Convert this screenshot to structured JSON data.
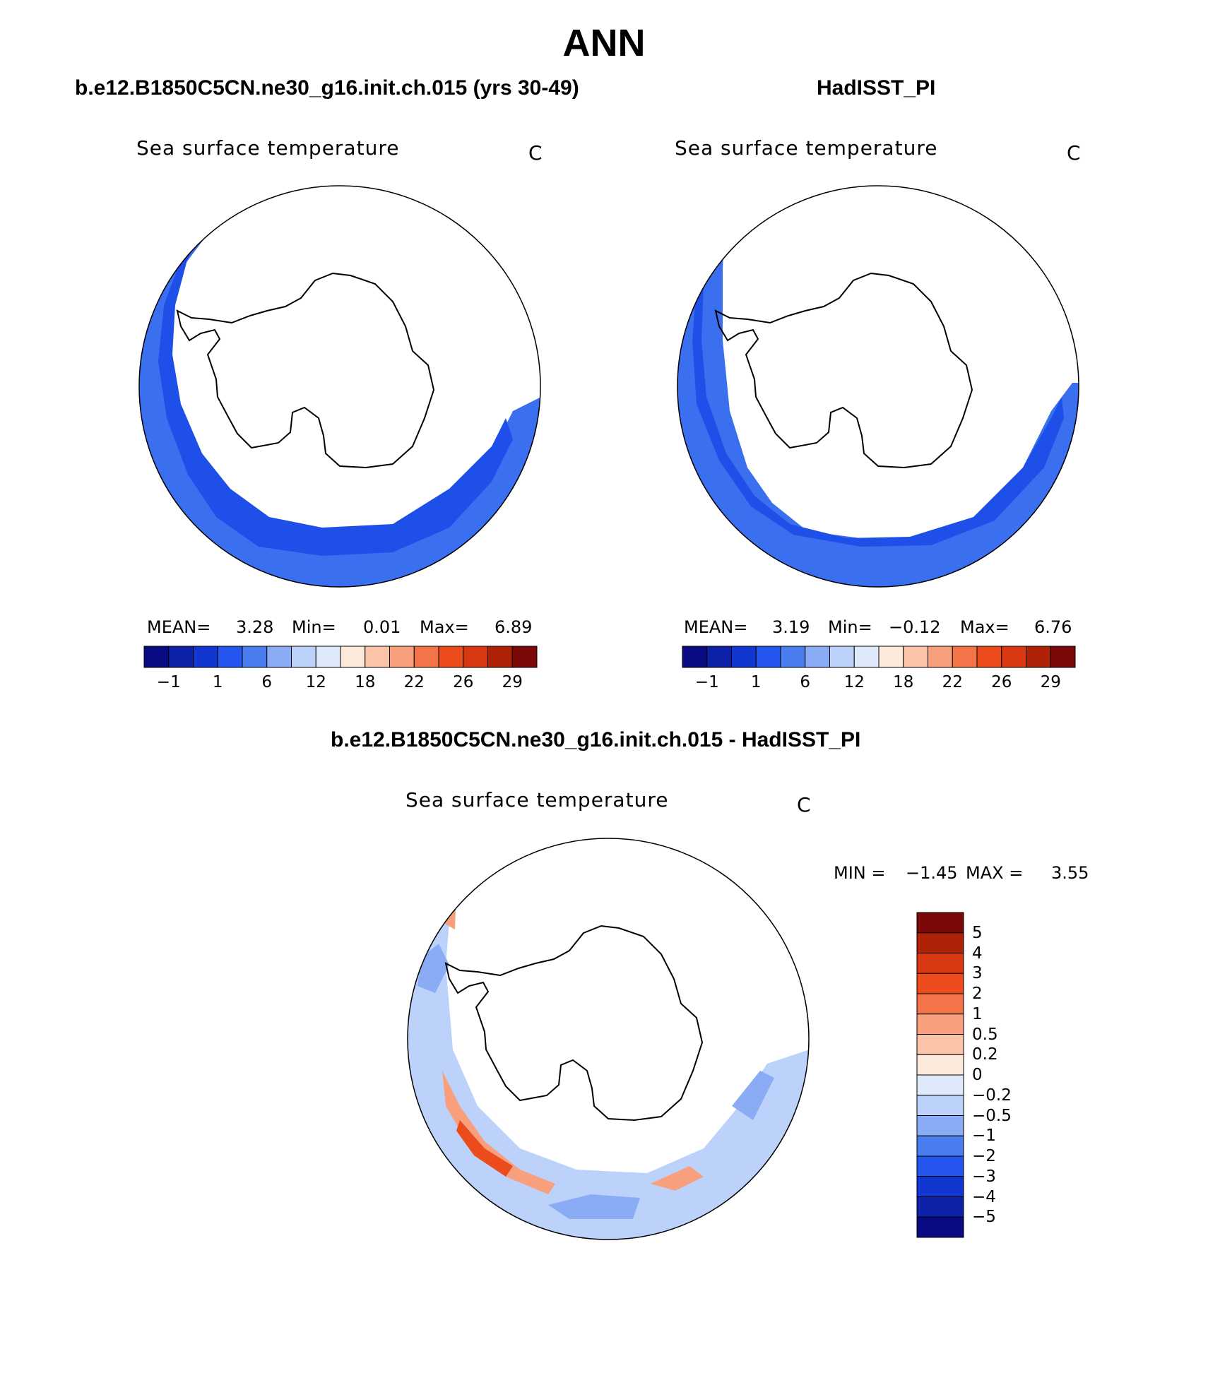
{
  "header": {
    "title": "ANN",
    "left_case": "b.e12.B1850C5CN.ne30_g16.init.ch.015 (yrs 30-49)",
    "right_case": "HadISST_PI",
    "diff_case": "b.e12.B1850C5CN.ne30_g16.init.ch.015 - HadISST_PI"
  },
  "panels": {
    "model": {
      "variable": "Sea surface temperature",
      "units": "C",
      "mean_label": "MEAN=",
      "mean": "3.28",
      "min_label": "Min=",
      "min": "0.01",
      "max_label": "Max=",
      "max": "6.89"
    },
    "obs": {
      "variable": "Sea surface temperature",
      "units": "C",
      "mean_label": "MEAN=",
      "mean": "3.19",
      "min_label": "Min=",
      "min": "−0.12",
      "max_label": "Max=",
      "max": "6.76"
    },
    "diff": {
      "variable": "Sea surface temperature",
      "units": "C",
      "min_label": "MIN =",
      "min": "−1.45",
      "max_label": "MAX =",
      "max": "3.55"
    }
  },
  "colorbars": {
    "abs_colors": [
      "#0a0a82",
      "#0d22a8",
      "#1236d0",
      "#2556ee",
      "#4a7ef0",
      "#8aacf4",
      "#bcd2fa",
      "#deeafc",
      "#fde9d9",
      "#fbc4a8",
      "#f8a07e",
      "#f37448",
      "#ec4c1c",
      "#d83812",
      "#b02208",
      "#7c0808"
    ],
    "abs_ticks": [
      "−1",
      "1",
      "6",
      "12",
      "18",
      "22",
      "26",
      "29"
    ],
    "diff_colors": [
      "#0a0a82",
      "#0d22a8",
      "#1236d0",
      "#2556ee",
      "#4a7ef0",
      "#8aacf4",
      "#bcd2fa",
      "#deeafc",
      "#fde9d9",
      "#fbc4a8",
      "#f8a07e",
      "#f37448",
      "#ec4c1c",
      "#d83812",
      "#b02208",
      "#7c0808"
    ],
    "diff_ticks": [
      "5",
      "4",
      "3",
      "2",
      "1",
      "0.5",
      "0.2",
      "0",
      "−0.2",
      "−0.5",
      "−1",
      "−2",
      "−3",
      "−4",
      "−5"
    ]
  },
  "map_fill": {
    "model_ocean": "#3a6ff0",
    "model_coastal": "#1e4fe8",
    "obs_ocean": "#3a6ff0",
    "obs_coastal": "#1e4fe8",
    "diff_light": "#bcd2fa",
    "diff_mid": "#8aacf4",
    "diff_warm": "#f8a07e",
    "diff_hot": "#ec4c1c"
  }
}
